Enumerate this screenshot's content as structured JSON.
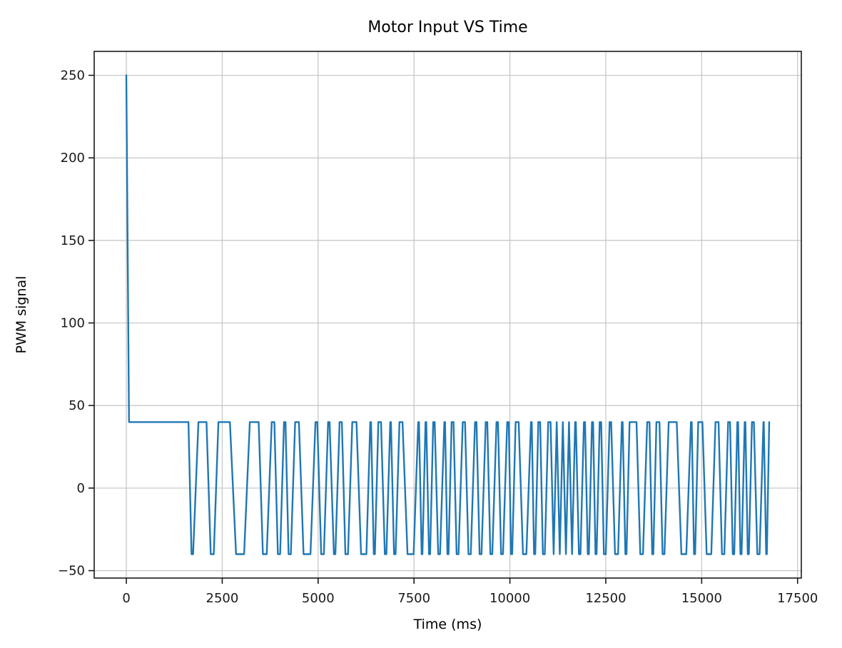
{
  "figure": {
    "background": "#ffffff"
  },
  "chart_data": {
    "type": "line",
    "title": "Motor Input VS Time",
    "xlabel": "Time (ms)",
    "ylabel": "PWM signal",
    "x_ticks": [
      0,
      2500,
      5000,
      7500,
      10000,
      12500,
      15000,
      17500
    ],
    "y_ticks": [
      -50,
      0,
      50,
      100,
      150,
      200,
      250
    ],
    "xlim": [
      -838,
      17598
    ],
    "ylim": [
      -54.5,
      264.5
    ],
    "grid": true,
    "legend_position": "none",
    "line_color": "#1f77b4",
    "grid_color": "#c4c4c4",
    "spine_color": "#1a1a1a",
    "tick_color": "#1a1a1a",
    "series": [
      {
        "name": "PWM signal",
        "points": [
          [
            0,
            250
          ],
          [
            70,
            40
          ],
          [
            1620,
            40
          ],
          [
            1700,
            -40
          ],
          [
            1740,
            -40
          ],
          [
            1880,
            40
          ],
          [
            2090,
            40
          ],
          [
            2200,
            -40
          ],
          [
            2280,
            -40
          ],
          [
            2400,
            40
          ],
          [
            2700,
            40
          ],
          [
            2860,
            -40
          ],
          [
            3070,
            -40
          ],
          [
            3220,
            40
          ],
          [
            3450,
            40
          ],
          [
            3560,
            -40
          ],
          [
            3660,
            -40
          ],
          [
            3790,
            40
          ],
          [
            3860,
            40
          ],
          [
            3950,
            -40
          ],
          [
            4010,
            -40
          ],
          [
            4110,
            40
          ],
          [
            4150,
            40
          ],
          [
            4230,
            -40
          ],
          [
            4290,
            -40
          ],
          [
            4400,
            40
          ],
          [
            4500,
            40
          ],
          [
            4620,
            -40
          ],
          [
            4800,
            -40
          ],
          [
            4930,
            40
          ],
          [
            4980,
            40
          ],
          [
            5080,
            -40
          ],
          [
            5150,
            -40
          ],
          [
            5260,
            40
          ],
          [
            5300,
            40
          ],
          [
            5410,
            -40
          ],
          [
            5450,
            -40
          ],
          [
            5560,
            40
          ],
          [
            5620,
            40
          ],
          [
            5710,
            -40
          ],
          [
            5780,
            -40
          ],
          [
            5890,
            40
          ],
          [
            6000,
            40
          ],
          [
            6120,
            -40
          ],
          [
            6260,
            -40
          ],
          [
            6360,
            40
          ],
          [
            6380,
            40
          ],
          [
            6450,
            -40
          ],
          [
            6480,
            -40
          ],
          [
            6570,
            40
          ],
          [
            6640,
            40
          ],
          [
            6740,
            -40
          ],
          [
            6780,
            -40
          ],
          [
            6880,
            40
          ],
          [
            6900,
            40
          ],
          [
            6980,
            -40
          ],
          [
            7020,
            -40
          ],
          [
            7120,
            40
          ],
          [
            7200,
            40
          ],
          [
            7330,
            -40
          ],
          [
            7490,
            -40
          ],
          [
            7610,
            40
          ],
          [
            7630,
            40
          ],
          [
            7700,
            -40
          ],
          [
            7720,
            -40
          ],
          [
            7800,
            40
          ],
          [
            7820,
            40
          ],
          [
            7890,
            -40
          ],
          [
            7920,
            -40
          ],
          [
            8000,
            40
          ],
          [
            8040,
            40
          ],
          [
            8130,
            -40
          ],
          [
            8180,
            -40
          ],
          [
            8290,
            40
          ],
          [
            8310,
            40
          ],
          [
            8370,
            -40
          ],
          [
            8400,
            -40
          ],
          [
            8480,
            40
          ],
          [
            8530,
            40
          ],
          [
            8610,
            -40
          ],
          [
            8660,
            -40
          ],
          [
            8770,
            40
          ],
          [
            8830,
            40
          ],
          [
            8920,
            -40
          ],
          [
            8980,
            -40
          ],
          [
            9090,
            40
          ],
          [
            9130,
            40
          ],
          [
            9210,
            -40
          ],
          [
            9260,
            -40
          ],
          [
            9370,
            40
          ],
          [
            9410,
            40
          ],
          [
            9490,
            -40
          ],
          [
            9540,
            -40
          ],
          [
            9650,
            40
          ],
          [
            9690,
            40
          ],
          [
            9770,
            -40
          ],
          [
            9820,
            -40
          ],
          [
            9930,
            40
          ],
          [
            9970,
            40
          ],
          [
            10030,
            -40
          ],
          [
            10060,
            -40
          ],
          [
            10150,
            40
          ],
          [
            10230,
            40
          ],
          [
            10340,
            -40
          ],
          [
            10430,
            -40
          ],
          [
            10550,
            40
          ],
          [
            10570,
            40
          ],
          [
            10630,
            -40
          ],
          [
            10660,
            -40
          ],
          [
            10740,
            40
          ],
          [
            10790,
            40
          ],
          [
            10860,
            -40
          ],
          [
            10910,
            -40
          ],
          [
            11000,
            40
          ],
          [
            11060,
            40
          ],
          [
            11140,
            -40
          ],
          [
            11220,
            40
          ],
          [
            11300,
            -40
          ],
          [
            11380,
            40
          ],
          [
            11460,
            -40
          ],
          [
            11540,
            40
          ],
          [
            11620,
            -40
          ],
          [
            11700,
            40
          ],
          [
            11720,
            40
          ],
          [
            11800,
            -40
          ],
          [
            11840,
            -40
          ],
          [
            11930,
            40
          ],
          [
            11960,
            40
          ],
          [
            12030,
            -40
          ],
          [
            12060,
            -40
          ],
          [
            12140,
            40
          ],
          [
            12170,
            40
          ],
          [
            12230,
            -40
          ],
          [
            12260,
            -40
          ],
          [
            12340,
            40
          ],
          [
            12380,
            40
          ],
          [
            12450,
            -40
          ],
          [
            12500,
            -40
          ],
          [
            12600,
            40
          ],
          [
            12640,
            40
          ],
          [
            12740,
            -40
          ],
          [
            12820,
            -40
          ],
          [
            12920,
            40
          ],
          [
            12940,
            40
          ],
          [
            13010,
            -40
          ],
          [
            13040,
            -40
          ],
          [
            13120,
            40
          ],
          [
            13300,
            40
          ],
          [
            13400,
            -40
          ],
          [
            13470,
            -40
          ],
          [
            13580,
            40
          ],
          [
            13640,
            40
          ],
          [
            13710,
            -40
          ],
          [
            13740,
            -40
          ],
          [
            13820,
            40
          ],
          [
            13900,
            40
          ],
          [
            13980,
            -40
          ],
          [
            14030,
            -40
          ],
          [
            14140,
            40
          ],
          [
            14350,
            40
          ],
          [
            14470,
            -40
          ],
          [
            14600,
            -40
          ],
          [
            14720,
            40
          ],
          [
            14740,
            40
          ],
          [
            14800,
            -40
          ],
          [
            14830,
            -40
          ],
          [
            14910,
            40
          ],
          [
            15020,
            40
          ],
          [
            15130,
            -40
          ],
          [
            15250,
            -40
          ],
          [
            15360,
            40
          ],
          [
            15440,
            40
          ],
          [
            15530,
            -40
          ],
          [
            15590,
            -40
          ],
          [
            15690,
            40
          ],
          [
            15740,
            40
          ],
          [
            15810,
            -40
          ],
          [
            15850,
            -40
          ],
          [
            15930,
            40
          ],
          [
            15950,
            40
          ],
          [
            16010,
            -40
          ],
          [
            16040,
            -40
          ],
          [
            16120,
            40
          ],
          [
            16140,
            40
          ],
          [
            16200,
            -40
          ],
          [
            16230,
            -40
          ],
          [
            16310,
            40
          ],
          [
            16360,
            40
          ],
          [
            16450,
            -40
          ],
          [
            16510,
            -40
          ],
          [
            16610,
            40
          ],
          [
            16620,
            40
          ],
          [
            16680,
            -40
          ],
          [
            16700,
            -40
          ],
          [
            16760,
            40
          ]
        ]
      }
    ]
  }
}
